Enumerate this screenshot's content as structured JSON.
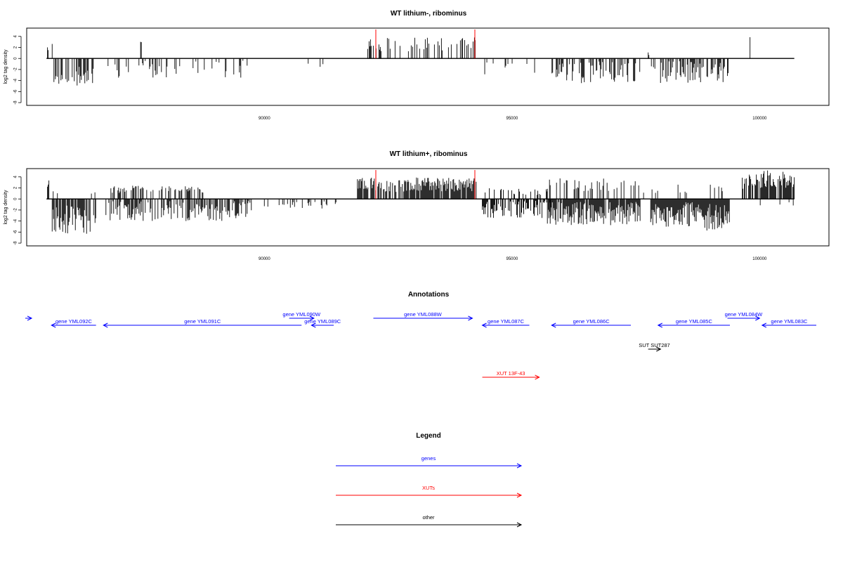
{
  "colors": {
    "genes": "#0000ff",
    "xuts": "#ff0000",
    "other": "#000000",
    "signal": "#000000",
    "marker": "#ff0000"
  },
  "chart_data": [
    {
      "type": "bar",
      "title": "WT lithium-, ribominus",
      "ylabel": "log2 tag density",
      "xlim": [
        85200,
        101400
      ],
      "ylim": [
        -8.5,
        5.5
      ],
      "yticks": [
        4,
        2,
        0,
        -2,
        -4,
        -6,
        -8
      ],
      "xticks": [
        90000,
        95000,
        100000
      ],
      "baseline": [
        85600,
        100700
      ],
      "markers": [
        92250,
        94250
      ],
      "seed": 11,
      "density": 0.45,
      "regions": [
        {
          "from": 85620,
          "to": 85650,
          "min": 0.5,
          "max": 3.8
        },
        {
          "from": 85700,
          "to": 85720,
          "min": 0.5,
          "max": 3.2
        },
        {
          "from": 85750,
          "to": 86600,
          "min": -6.2,
          "max": -1.5
        },
        {
          "from": 86550,
          "to": 86560,
          "min": 1.5,
          "max": 2.8
        },
        {
          "from": 86800,
          "to": 89800,
          "min": -4.5,
          "max": -0.4,
          "sparse": 0.2
        },
        {
          "from": 87500,
          "to": 87520,
          "min": 2.2,
          "max": 3.2
        },
        {
          "from": 90700,
          "to": 91400,
          "min": -2.2,
          "max": -0.4,
          "sparse": 0.05
        },
        {
          "from": 92000,
          "to": 94300,
          "min": 0.4,
          "max": 3.8,
          "sparse": 0.3
        },
        {
          "from": 94350,
          "to": 95500,
          "min": -3.8,
          "max": -0.3,
          "sparse": 0.12
        },
        {
          "from": 94900,
          "to": 95300,
          "min": 1.5,
          "max": 3.1,
          "sparse": 0.03
        },
        {
          "from": 95750,
          "to": 97600,
          "min": -5.8,
          "max": -0.5
        },
        {
          "from": 97750,
          "to": 97780,
          "min": 0.3,
          "max": 1.2
        },
        {
          "from": 97800,
          "to": 99300,
          "min": -6.0,
          "max": -0.5
        },
        {
          "from": 99350,
          "to": 99400,
          "min": -5.2,
          "max": -0.5
        },
        {
          "from": 99650,
          "to": 100500,
          "min": 1.8,
          "max": 4.2,
          "sparse": 0.02
        }
      ]
    },
    {
      "type": "bar",
      "title": "WT lithium+, ribominus",
      "ylabel": "log2 tag density",
      "xlim": [
        85200,
        101400
      ],
      "ylim": [
        -8.5,
        5.5
      ],
      "yticks": [
        4,
        2,
        0,
        -2,
        -4,
        -6,
        -8
      ],
      "xticks": [
        90000,
        95000,
        100000
      ],
      "baseline": [
        85600,
        100700
      ],
      "markers": [
        92250,
        94250
      ],
      "seed": 23,
      "density": 0.75,
      "regions": [
        {
          "from": 85620,
          "to": 85650,
          "min": 0.5,
          "max": 3.8
        },
        {
          "from": 85650,
          "to": 85900,
          "min": 0.3,
          "max": 1.6,
          "sparse": 0.2
        },
        {
          "from": 85700,
          "to": 86600,
          "min": -8.0,
          "max": -1.2
        },
        {
          "from": 86450,
          "to": 86580,
          "min": 0.3,
          "max": 1.5,
          "sparse": 0.2
        },
        {
          "from": 86800,
          "to": 89800,
          "min": -5.2,
          "max": -0.4,
          "sparse": 0.6
        },
        {
          "from": 86900,
          "to": 88800,
          "min": 0.5,
          "max": 2.4,
          "sparse": 0.35
        },
        {
          "from": 89800,
          "to": 91500,
          "min": -2.2,
          "max": -0.4,
          "sparse": 0.15
        },
        {
          "from": 91850,
          "to": 94300,
          "min": 0.4,
          "max": 3.9,
          "sparse": 0.8
        },
        {
          "from": 94400,
          "to": 95800,
          "min": -4.5,
          "max": -0.3,
          "sparse": 0.6
        },
        {
          "from": 94400,
          "to": 95800,
          "min": 0.3,
          "max": 2.0,
          "sparse": 0.25
        },
        {
          "from": 95700,
          "to": 97600,
          "min": -6.2,
          "max": -0.5,
          "sparse": 0.9
        },
        {
          "from": 95700,
          "to": 97600,
          "min": 0.5,
          "max": 3.8,
          "sparse": 0.3
        },
        {
          "from": 97800,
          "to": 99400,
          "min": -7.5,
          "max": -0.5,
          "sparse": 1.0
        },
        {
          "from": 97600,
          "to": 99400,
          "min": 0.5,
          "max": 2.6,
          "sparse": 0.08
        },
        {
          "from": 99650,
          "to": 100700,
          "min": 0.6,
          "max": 5.2,
          "sparse": 0.85
        },
        {
          "from": 99700,
          "to": 100700,
          "min": -1.8,
          "max": -0.3,
          "sparse": 0.05
        }
      ]
    }
  ],
  "annotations": {
    "title": "Annotations",
    "features": [
      {
        "label": "",
        "class": "genes",
        "start": 84500,
        "end": 85300,
        "strand": "+",
        "row": 0
      },
      {
        "label": "gene YML092C",
        "class": "genes",
        "start": 85700,
        "end": 86600,
        "strand": "-",
        "row": 1
      },
      {
        "label": "gene YML091C",
        "class": "genes",
        "start": 86750,
        "end": 90750,
        "strand": "-",
        "row": 1
      },
      {
        "label": "gene YML090W",
        "class": "genes",
        "start": 90500,
        "end": 91000,
        "strand": "+",
        "row": 0
      },
      {
        "label": "gene YML089C",
        "class": "genes",
        "start": 90950,
        "end": 91400,
        "strand": "-",
        "row": 1
      },
      {
        "label": "gene YML088W",
        "class": "genes",
        "start": 92200,
        "end": 94200,
        "strand": "+",
        "row": 0
      },
      {
        "label": "gene YML087C",
        "class": "genes",
        "start": 94400,
        "end": 95350,
        "strand": "-",
        "row": 1
      },
      {
        "label": "gene YML086C",
        "class": "genes",
        "start": 95800,
        "end": 97400,
        "strand": "-",
        "row": 1
      },
      {
        "label": "gene YML085C",
        "class": "genes",
        "start": 97950,
        "end": 99400,
        "strand": "-",
        "row": 1
      },
      {
        "label": "gene YML084W",
        "class": "genes",
        "start": 99350,
        "end": 100000,
        "strand": "+",
        "row": 0
      },
      {
        "label": "gene YML083C",
        "class": "genes",
        "start": 100050,
        "end": 101250,
        "strand": "-",
        "row": 1
      },
      {
        "label": "SUT SUT287",
        "class": "other",
        "start": 97750,
        "end": 98000,
        "strand": "+",
        "row": 2
      },
      {
        "label": "XUT 13F-43",
        "class": "xuts",
        "start": 94400,
        "end": 95550,
        "strand": "+",
        "row": 3
      }
    ]
  },
  "legend": {
    "title": "Legend",
    "items": [
      {
        "label": "genes",
        "class": "genes"
      },
      {
        "label": "XUTs",
        "class": "xuts"
      },
      {
        "label": "other",
        "class": "other"
      }
    ]
  }
}
